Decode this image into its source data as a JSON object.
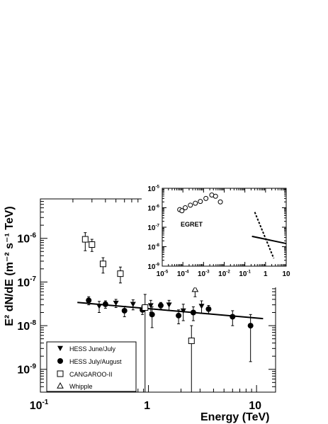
{
  "chart_data": [
    {
      "type": "scatter",
      "xlabel": "Energy (TeV)",
      "ylabel": "E² dN/dE  (m⁻² s⁻¹ TeV)",
      "x_scale": "log",
      "y_scale": "log",
      "xlim": [
        0.1,
        15
      ],
      "ylim": [
        3e-10,
        8e-06
      ],
      "x_ticks": [
        {
          "value": 0.1,
          "base": "10",
          "exp": "-1"
        },
        {
          "value": 1,
          "base": "1",
          "exp": ""
        },
        {
          "value": 10,
          "base": "10",
          "exp": ""
        }
      ],
      "y_ticks": [
        {
          "value": 1e-09,
          "base": "10",
          "exp": "-9"
        },
        {
          "value": 1e-08,
          "base": "10",
          "exp": "-8"
        },
        {
          "value": 1e-07,
          "base": "10",
          "exp": "-7"
        },
        {
          "value": 1e-06,
          "base": "10",
          "exp": "-6"
        }
      ],
      "legend_position": "bottom-left",
      "series": [
        {
          "name": "HESS June/July",
          "marker": "triangle-down-filled",
          "points": [
            {
              "x": 0.35,
              "y": 2.8e-08,
              "lo": 2e-08,
              "hi": 3.6e-08
            },
            {
              "x": 0.5,
              "y": 3.3e-08,
              "lo": 2.6e-08,
              "hi": 4e-08
            },
            {
              "x": 0.72,
              "y": 3.1e-08,
              "lo": 2.3e-08,
              "hi": 3.9e-08
            },
            {
              "x": 1.05,
              "y": 2.9e-08,
              "lo": 2e-08,
              "hi": 3.8e-08
            },
            {
              "x": 1.55,
              "y": 3e-08,
              "lo": 2.2e-08,
              "hi": 3.8e-08
            },
            {
              "x": 2.1,
              "y": 2.2e-08,
              "lo": 1.3e-08,
              "hi": 3.1e-08
            },
            {
              "x": 3.1,
              "y": 2.8e-08,
              "lo": 1.9e-08,
              "hi": 3.7e-08
            }
          ]
        },
        {
          "name": "HESS July/August",
          "marker": "circle-filled",
          "points": [
            {
              "x": 0.28,
              "y": 3.8e-08,
              "lo": 3e-08,
              "hi": 4.6e-08
            },
            {
              "x": 0.4,
              "y": 3.1e-08,
              "lo": 2.5e-08,
              "hi": 3.7e-08
            },
            {
              "x": 0.6,
              "y": 2.2e-08,
              "lo": 1.6e-08,
              "hi": 2.8e-08
            },
            {
              "x": 0.88,
              "y": 2.3e-08,
              "lo": 1.8e-08,
              "hi": 2.8e-08
            },
            {
              "x": 1.08,
              "y": 1.8e-08,
              "lo": 9e-09,
              "hi": 2.7e-08
            },
            {
              "x": 1.3,
              "y": 2.9e-08,
              "lo": 2.4e-08,
              "hi": 3.4e-08
            },
            {
              "x": 1.9,
              "y": 1.7e-08,
              "lo": 1.1e-08,
              "hi": 2.3e-08
            },
            {
              "x": 2.6,
              "y": 2e-08,
              "lo": 1.3e-08,
              "hi": 2.7e-08
            },
            {
              "x": 3.6,
              "y": 2.4e-08,
              "lo": 1.9e-08,
              "hi": 2.9e-08
            },
            {
              "x": 6.0,
              "y": 1.6e-08,
              "lo": 1e-08,
              "hi": 2.2e-08
            },
            {
              "x": 8.8,
              "y": 1e-08,
              "lo": 1.5e-09,
              "hi": 1.8e-08
            }
          ]
        },
        {
          "name": "CANGAROO-II",
          "marker": "square-open",
          "points": [
            {
              "x": 0.26,
              "y": 9.5e-07,
              "lo": 5.2e-07,
              "hi": 1.35e-06
            },
            {
              "x": 0.3,
              "y": 7.2e-07,
              "lo": 5e-07,
              "hi": 9.5e-07
            },
            {
              "x": 0.38,
              "y": 2.6e-07,
              "lo": 1.6e-07,
              "hi": 3.6e-07
            },
            {
              "x": 0.55,
              "y": 1.55e-07,
              "lo": 9.5e-08,
              "hi": 2.2e-07
            },
            {
              "x": 0.93,
              "y": 2.6e-08,
              "lo": 3e-10,
              "hi": 5.2e-08
            },
            {
              "x": 2.5,
              "y": 4.5e-09,
              "lo": 3e-10,
              "hi": 1e-08
            }
          ]
        },
        {
          "name": "Whipple",
          "marker": "triangle-up-open",
          "points": [
            {
              "x": 2.7,
              "y": 6.8e-08,
              "lo": 4.6e-08,
              "hi": 9e-08
            }
          ]
        }
      ],
      "fit_line": {
        "x": [
          0.22,
          11.5
        ],
        "y": [
          3.4e-08,
          1.45e-08
        ]
      }
    },
    {
      "type": "scatter",
      "annotation": "EGRET",
      "x_scale": "log",
      "y_scale": "log",
      "xlim": [
        1e-05,
        10
      ],
      "ylim": [
        1e-09,
        1e-05
      ],
      "x_ticks": [
        {
          "value": 1e-05,
          "base": "10",
          "exp": "-5"
        },
        {
          "value": 0.0001,
          "base": "10",
          "exp": "-4"
        },
        {
          "value": 0.001,
          "base": "10",
          "exp": "-3"
        },
        {
          "value": 0.01,
          "base": "10",
          "exp": "-2"
        },
        {
          "value": 0.1,
          "base": "10",
          "exp": "-1"
        },
        {
          "value": 1,
          "base": "1",
          "exp": ""
        },
        {
          "value": 10,
          "base": "10",
          "exp": ""
        }
      ],
      "y_ticks": [
        {
          "value": 1e-09,
          "base": "10",
          "exp": "-9"
        },
        {
          "value": 1e-08,
          "base": "10",
          "exp": "-8"
        },
        {
          "value": 1e-07,
          "base": "10",
          "exp": "-7"
        },
        {
          "value": 1e-06,
          "base": "10",
          "exp": "-6"
        },
        {
          "value": 1e-05,
          "base": "10",
          "exp": "-5"
        }
      ],
      "egret_points": [
        {
          "x": 7e-05,
          "y": 8e-07
        },
        {
          "x": 9e-05,
          "y": 7e-07
        },
        {
          "x": 0.00013,
          "y": 1e-06
        },
        {
          "x": 0.00023,
          "y": 1.35e-06
        },
        {
          "x": 0.0004,
          "y": 1.7e-06
        },
        {
          "x": 0.0007,
          "y": 2.1e-06
        },
        {
          "x": 0.0013,
          "y": 3e-06
        },
        {
          "x": 0.0025,
          "y": 4.5e-06
        },
        {
          "x": 0.0038,
          "y": 3.9e-06
        },
        {
          "x": 0.0065,
          "y": 2e-06
        }
      ],
      "dashed_line": {
        "x": [
          0.3,
          2.5
        ],
        "y": [
          6e-07,
          2.5e-09
        ]
      },
      "solid_line": {
        "x": [
          0.22,
          10
        ],
        "y": [
          3.4e-08,
          1.45e-08
        ]
      }
    }
  ]
}
